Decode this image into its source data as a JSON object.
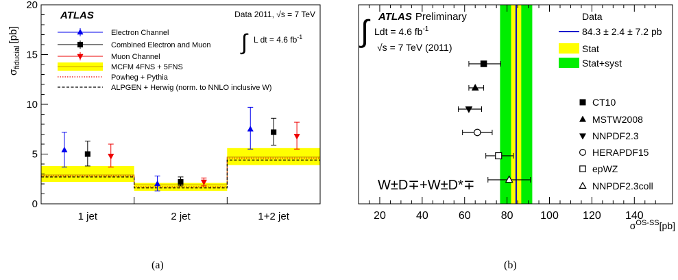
{
  "panels": {
    "a": {
      "caption": "(a)"
    },
    "b": {
      "caption": "(b)"
    }
  },
  "chart_data": [
    {
      "type": "scatter",
      "panel": "a",
      "atlas_label": "ATLAS",
      "energy_label": "Data 2011, √s = 7 TeV",
      "lumi_label": "L dt = 4.6 fb",
      "lumi_sup": "-1",
      "ylabel": "σ",
      "ylabel_sub": "fiducial",
      "ylabel_unit": "[pb]",
      "ylim": [
        0,
        20
      ],
      "yticks": [
        0,
        5,
        10,
        15,
        20
      ],
      "categories": [
        "1 jet",
        "2 jet",
        "1+2 jet"
      ],
      "legend": [
        {
          "label": "Electron Channel",
          "color": "#0000ee",
          "marker": "triangle-up",
          "style": "marker"
        },
        {
          "label": "Combined Electron and Muon",
          "color": "#000000",
          "marker": "square",
          "style": "marker"
        },
        {
          "label": "Muon Channel",
          "color": "#ee0000",
          "marker": "triangle-down",
          "style": "marker"
        },
        {
          "label": "MCFM 4FNS + 5FNS",
          "color": "#ffff00",
          "style": "band"
        },
        {
          "label": "Powheg + Pythia",
          "color": "#ee0000",
          "style": "dotted"
        },
        {
          "label": "ALPGEN + Herwig (norm. to NNLO inclusive W)",
          "color": "#000000",
          "style": "dashed"
        }
      ],
      "series": [
        {
          "name": "Electron Channel",
          "color": "#0000ee",
          "marker": "triangle-up",
          "values": [
            5.4,
            2.0,
            7.5
          ],
          "err_up": [
            1.8,
            0.8,
            2.2
          ],
          "err_down": [
            1.7,
            0.7,
            2.0
          ]
        },
        {
          "name": "Combined Electron and Muon",
          "color": "#000000",
          "marker": "square",
          "values": [
            5.0,
            2.2,
            7.2
          ],
          "err_up": [
            1.3,
            0.5,
            1.4
          ],
          "err_down": [
            1.2,
            0.4,
            1.3
          ]
        },
        {
          "name": "Muon Channel",
          "color": "#ee0000",
          "marker": "triangle-down",
          "values": [
            4.8,
            2.2,
            6.8
          ],
          "err_up": [
            1.2,
            0.4,
            1.4
          ],
          "err_down": [
            1.1,
            0.4,
            1.3
          ]
        }
      ],
      "mcfm": {
        "center": [
          2.9,
          1.9,
          4.7
        ],
        "low": [
          2.2,
          1.3,
          3.9
        ],
        "high": [
          3.8,
          2.1,
          5.6
        ]
      },
      "powheg": [
        2.8,
        1.7,
        4.6
      ],
      "alpgen": [
        2.7,
        1.6,
        4.4
      ]
    },
    {
      "type": "scatter",
      "panel": "b",
      "atlas_label": "ATLAS",
      "preliminary_label": "Preliminary",
      "lumi_label": "Ldt = 4.6 fb",
      "lumi_sup": "-1",
      "energy_label": "√s = 7 TeV (2011)",
      "process_label": "W±D∓+W±D*∓",
      "xlabel": "σ",
      "xlabel_sup": "OS-SS",
      "xlabel_unit": "[pb]",
      "xlim": [
        10,
        158
      ],
      "xticks": [
        20,
        40,
        60,
        80,
        100,
        120,
        140
      ],
      "data": {
        "label": "Data",
        "value_label": "84.3 ± 2.4 ± 7.2 pb",
        "value": 84.3,
        "stat": 2.4,
        "syst": 7.2,
        "color": "#0000cc"
      },
      "bands": [
        {
          "label": "Stat",
          "color": "#ffff00"
        },
        {
          "label": "Stat+syst",
          "color": "#00ee00"
        }
      ],
      "predictions": [
        {
          "name": "CT10",
          "marker": "square-filled",
          "value": 69,
          "err_low": 7,
          "err_high": 8
        },
        {
          "name": "MSTW2008",
          "marker": "triangle-up-filled",
          "value": 65,
          "err_low": 3,
          "err_high": 4
        },
        {
          "name": "NNPDF2.3",
          "marker": "triangle-down-filled",
          "value": 62,
          "err_low": 5,
          "err_high": 6
        },
        {
          "name": "HERAPDF15",
          "marker": "circle-open",
          "value": 66,
          "err_low": 7,
          "err_high": 7
        },
        {
          "name": "epWZ",
          "marker": "square-open",
          "value": 76,
          "err_low": 6,
          "err_high": 7
        },
        {
          "name": "NNPDF2.3coll",
          "marker": "triangle-up-open",
          "value": 81,
          "err_low": 10,
          "err_high": 10
        }
      ]
    }
  ]
}
